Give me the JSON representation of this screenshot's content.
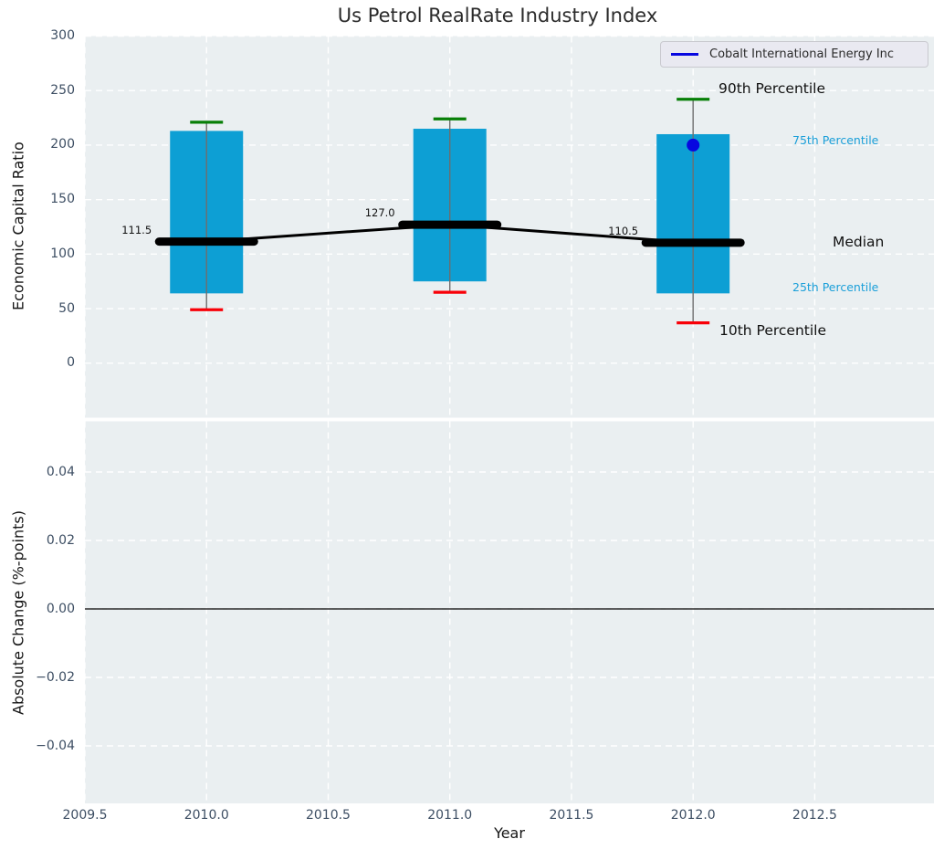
{
  "chart_data": {
    "type": "box",
    "title": "Us Petrol RealRate Industry Index",
    "xlabel": "Year",
    "xlim": [
      2009.5,
      2012.99
    ],
    "xticks": {
      "values": [
        2009.5,
        2010.0,
        2010.5,
        2011.0,
        2011.5,
        2012.0,
        2012.5
      ],
      "labels": [
        "2009.5",
        "2010.0",
        "2010.5",
        "2011.0",
        "2011.5",
        "2012.0",
        "2012.5"
      ]
    },
    "top": {
      "ylabel": "Economic Capital Ratio",
      "ylim": [
        -50,
        300
      ],
      "yticks": {
        "values": [
          0,
          50,
          100,
          150,
          200,
          250,
          300
        ],
        "labels": [
          "0",
          "50",
          "100",
          "150",
          "200",
          "250",
          "300"
        ]
      },
      "grid": true,
      "boxes": [
        {
          "year": 2010,
          "p10": 49,
          "p25": 64,
          "median": 111.5,
          "p75": 213,
          "p90": 221,
          "median_label": "111.5"
        },
        {
          "year": 2011,
          "p10": 65,
          "p25": 75,
          "median": 127.0,
          "p75": 215,
          "p90": 224,
          "median_label": "127.0"
        },
        {
          "year": 2012,
          "p10": 37,
          "p25": 64,
          "median": 110.5,
          "p75": 210,
          "p90": 242,
          "median_label": "110.5"
        }
      ],
      "company_series": {
        "name": "Cobalt International Energy Inc",
        "points": [
          {
            "year": 2012,
            "value": 200
          }
        ]
      },
      "annotations": {
        "p90": "90th Percentile",
        "p75": "75th Percentile",
        "median": "Median",
        "p25": "25th Percentile",
        "p10": "10th Percentile"
      },
      "legend_position": "upper right"
    },
    "bottom": {
      "ylabel": "Absolute Change (%-points)",
      "ylim": [
        -0.0568,
        0.0548
      ],
      "yticks": {
        "values": [
          0.04,
          0.02,
          0,
          -0.02,
          -0.04
        ],
        "labels": [
          "0.04",
          "0.02",
          "0.00",
          "−0.02",
          "−0.04"
        ]
      },
      "grid": true,
      "zero_line": 0
    },
    "colors": {
      "box_fill": "#0d9fd4",
      "whisker": "#6e6e6e",
      "cap_top": "#077f07",
      "cap_bottom": "#f80008",
      "median": "#000000",
      "company": "#0707e0",
      "percentile_label": "#1b9fd9",
      "axes_bg": "#eaeff1",
      "grid": "#ffffff",
      "tick_label": "#3d4e63",
      "zero_line": "#000000"
    }
  }
}
